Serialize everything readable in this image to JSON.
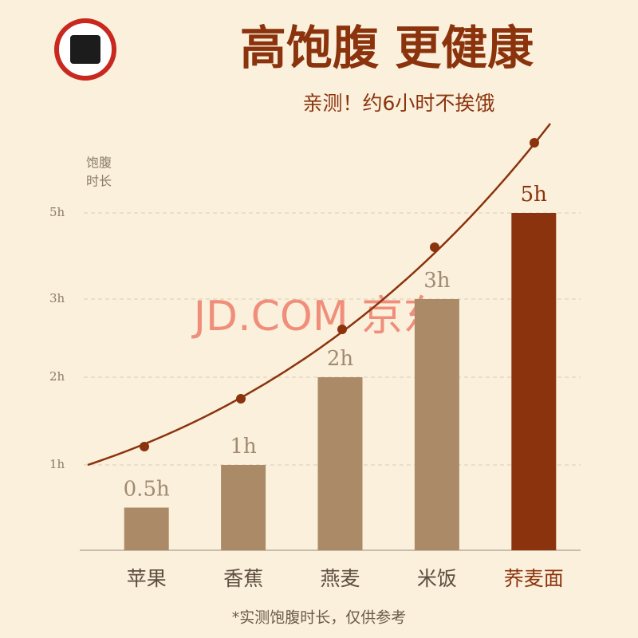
{
  "chart_data": {
    "type": "bar",
    "title": "高饱腹 更健康",
    "subtitle": "亲测！约6小时不挨饿",
    "y_label": [
      "饱腹",
      "时长"
    ],
    "watermark": "JD.COM 京东",
    "footnote": "*实测饱腹时长，仅供参考",
    "categories": [
      "苹果",
      "香蕉",
      "燕麦",
      "米饭",
      "荞麦面"
    ],
    "values": [
      0.5,
      1,
      2,
      3,
      5
    ],
    "value_labels": [
      "0.5h",
      "1h",
      "2h",
      "3h",
      "5h"
    ],
    "colors": [
      "#ab8a68",
      "#ab8a68",
      "#ab8a68",
      "#ab8a68",
      "#8a330d"
    ],
    "ylim": [
      0,
      5
    ],
    "yticks": [
      {
        "value": 1,
        "label": "1h"
      },
      {
        "value": 2,
        "label": "2h"
      },
      {
        "value": 3,
        "label": "3h"
      },
      {
        "value": 5,
        "label": "5h"
      }
    ],
    "grid": true
  }
}
